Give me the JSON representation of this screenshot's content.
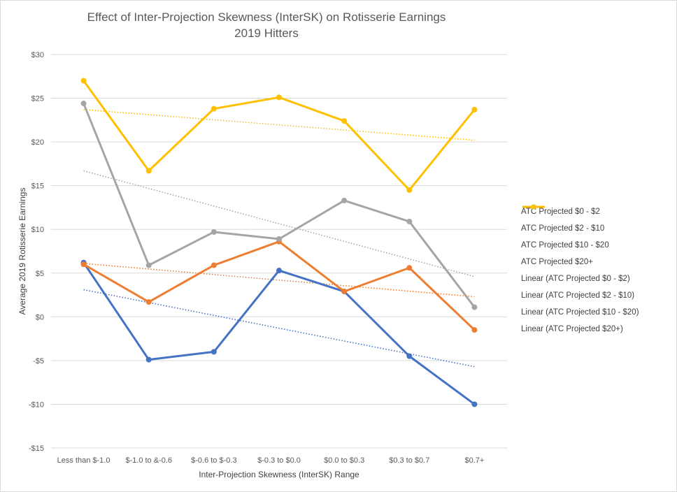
{
  "chart_data": {
    "type": "line",
    "title": "Effect of Inter-Projection Skewness (InterSK) on Rotisserie Earnings",
    "subtitle": "2019 Hitters",
    "xlabel": "Inter-Projection Skewness (InterSK) Range",
    "ylabel": "Average 2019 Rotisserie Earnings",
    "categories": [
      "Less than $-1.0",
      "$-1.0 to &-0.6",
      "$-0.6 to $-0.3",
      "$-0.3 to $0.0",
      "$0.0 to $0.3",
      "$0.3 to $0.7",
      "$0.7+"
    ],
    "ylim": [
      -15,
      30
    ],
    "yticks": [
      30,
      25,
      20,
      15,
      10,
      5,
      0,
      -5,
      -10,
      -15
    ],
    "ytick_labels": [
      "$30",
      "$25",
      "$20",
      "$15",
      "$10",
      "$5",
      "$0",
      "-$5",
      "-$10",
      "-$15"
    ],
    "grid": true,
    "legend_position": "right",
    "series": [
      {
        "name": "ATC Projected $0 - $2",
        "color": "#4472C4",
        "values": [
          6.2,
          -4.9,
          -4.0,
          5.3,
          2.9,
          -4.5,
          -10.0
        ]
      },
      {
        "name": "ATC Projected $2 - $10",
        "color": "#ED7D31",
        "values": [
          6.0,
          1.7,
          5.9,
          8.6,
          2.9,
          5.6,
          -1.5
        ]
      },
      {
        "name": "ATC Projected $10 - $20",
        "color": "#A5A5A5",
        "values": [
          24.4,
          5.9,
          9.7,
          8.9,
          13.3,
          10.9,
          1.1
        ]
      },
      {
        "name": "ATC Projected $20+",
        "color": "#FFC000",
        "values": [
          27.0,
          16.7,
          23.8,
          25.1,
          22.4,
          14.5,
          23.7
        ]
      }
    ],
    "trendlines": [
      {
        "name": "Linear (ATC Projected $0 - $2)",
        "color": "#4472C4",
        "start": 3.1,
        "end": -5.7
      },
      {
        "name": "Linear (ATC Projected $2 - $10)",
        "color": "#ED7D31",
        "start": 6.1,
        "end": 2.3
      },
      {
        "name": "Linear (ATC Projected $10 - $20)",
        "color": "#A5A5A5",
        "start": 16.7,
        "end": 4.6
      },
      {
        "name": "Linear (ATC Projected $20+)",
        "color": "#FFC000",
        "start": 23.7,
        "end": 20.2
      }
    ]
  }
}
